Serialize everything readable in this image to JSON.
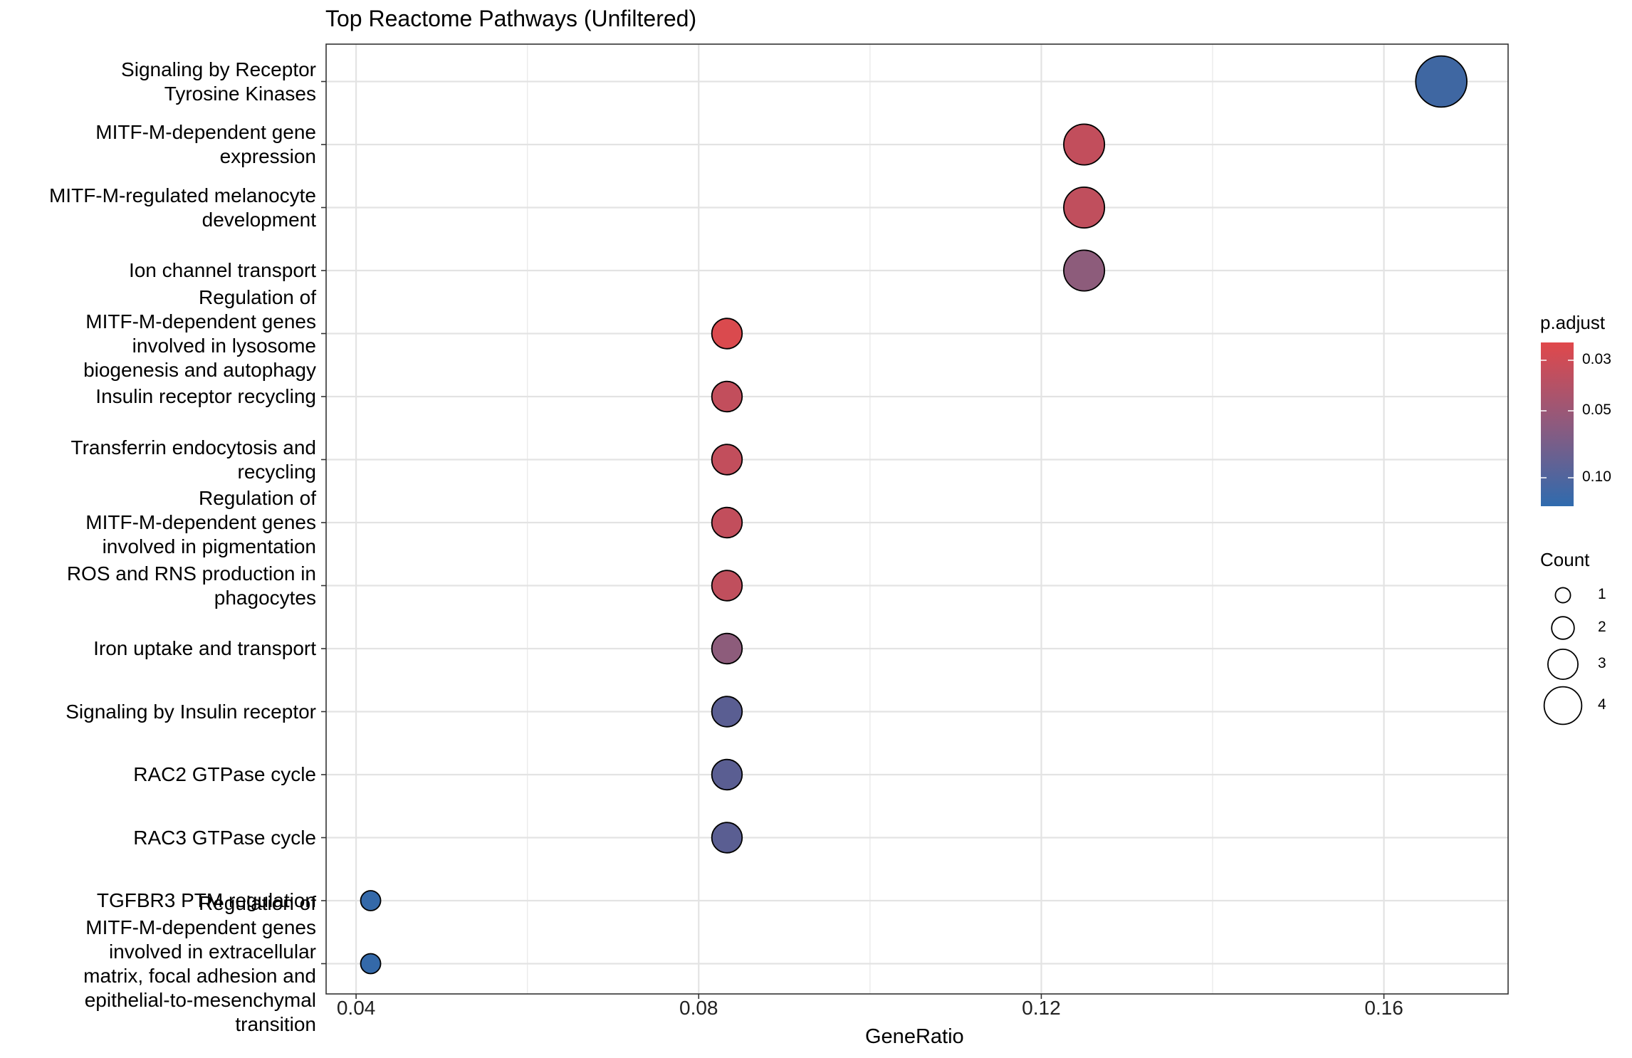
{
  "chart_data": {
    "type": "scatter",
    "title": "Top Reactome Pathways (Unfiltered)",
    "xlabel": "GeneRatio",
    "ylabel": "",
    "xlim": [
      0.0365,
      0.1745
    ],
    "xticks": [
      "0.04",
      "0.08",
      "0.12",
      "0.16"
    ],
    "grid": true,
    "legend_position": "right",
    "categories": [
      "Signaling by Receptor\nTyrosine Kinases",
      "MITF-M-dependent gene\nexpression",
      "MITF-M-regulated melanocyte\ndevelopment",
      "Ion channel transport",
      "Regulation of\nMITF-M-dependent genes\ninvolved in lysosome\nbiogenesis and autophagy",
      "Insulin receptor recycling",
      "Transferrin endocytosis and\nrecycling",
      "Regulation of\nMITF-M-dependent genes\ninvolved in pigmentation",
      "ROS and RNS production in\nphagocytes",
      "Iron uptake and transport",
      "Signaling by Insulin receptor",
      "RAC2 GTPase cycle",
      "RAC3 GTPase cycle",
      "TGFBR3 PTM regulation",
      "Regulation of\nMITF-M-dependent genes\ninvolved in extracellular\nmatrix, focal adhesion and\nepithelial-to-mesenchymal\ntransition"
    ],
    "points": [
      {
        "gene_ratio": 0.1667,
        "count": 4,
        "p_adjust": 0.12,
        "color": "#3F67A2"
      },
      {
        "gene_ratio": 0.125,
        "count": 3,
        "p_adjust": 0.034,
        "color": "#C24E5C"
      },
      {
        "gene_ratio": 0.125,
        "count": 3,
        "p_adjust": 0.035,
        "color": "#C04F5D"
      },
      {
        "gene_ratio": 0.125,
        "count": 3,
        "p_adjust": 0.055,
        "color": "#8D5C7B"
      },
      {
        "gene_ratio": 0.0833,
        "count": 2,
        "p_adjust": 0.028,
        "color": "#DA4A4E"
      },
      {
        "gene_ratio": 0.0833,
        "count": 2,
        "p_adjust": 0.034,
        "color": "#C24E5C"
      },
      {
        "gene_ratio": 0.0833,
        "count": 2,
        "p_adjust": 0.034,
        "color": "#C24E5C"
      },
      {
        "gene_ratio": 0.0833,
        "count": 2,
        "p_adjust": 0.034,
        "color": "#C24E5C"
      },
      {
        "gene_ratio": 0.0833,
        "count": 2,
        "p_adjust": 0.035,
        "color": "#C04F5D"
      },
      {
        "gene_ratio": 0.0833,
        "count": 2,
        "p_adjust": 0.055,
        "color": "#8D5C7B"
      },
      {
        "gene_ratio": 0.0833,
        "count": 2,
        "p_adjust": 0.09,
        "color": "#5A5E92"
      },
      {
        "gene_ratio": 0.0833,
        "count": 2,
        "p_adjust": 0.09,
        "color": "#5A5E92"
      },
      {
        "gene_ratio": 0.0833,
        "count": 2,
        "p_adjust": 0.09,
        "color": "#5A5E92"
      },
      {
        "gene_ratio": 0.0417,
        "count": 1,
        "p_adjust": 0.14,
        "color": "#3469A9"
      },
      {
        "gene_ratio": 0.0417,
        "count": 1,
        "p_adjust": 0.14,
        "color": "#3469A9"
      }
    ],
    "color_legend": {
      "title": "p.adjust",
      "ticks": [
        "0.03",
        "0.05",
        "0.10"
      ],
      "low_color": "#E0484B",
      "high_color": "#2F6BAE"
    },
    "size_legend": {
      "title": "Count",
      "values": [
        1,
        2,
        3,
        4
      ],
      "labels": [
        "1",
        "2",
        "3",
        "4"
      ]
    }
  }
}
